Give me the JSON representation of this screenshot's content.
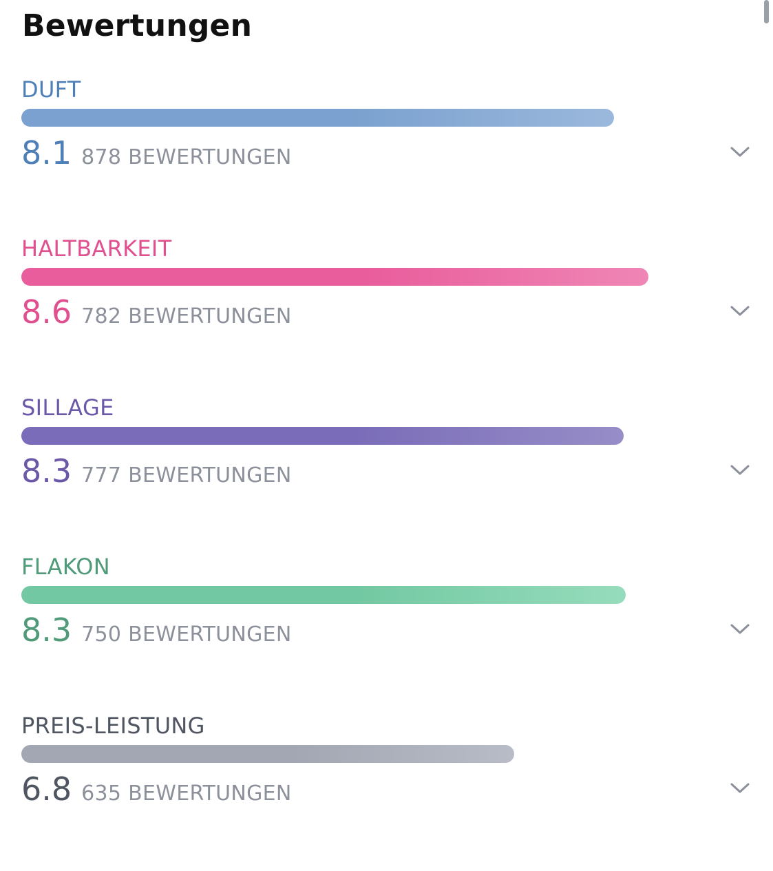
{
  "title": "Bewertungen",
  "ratings": [
    {
      "label": "DUFT",
      "score": "8.1",
      "count_label": "878 BEWERTUNGEN",
      "fill_fraction": 0.895,
      "color": "#4f7fb7",
      "bar_start": "#7aa1cf",
      "bar_end": "#9bb8dc"
    },
    {
      "label": "HALTBARKEIT",
      "score": "8.6",
      "count_label": "782 BEWERTUNGEN",
      "fill_fraction": 0.947,
      "color": "#e0508f",
      "bar_start": "#e95d9c",
      "bar_end": "#ef86b5"
    },
    {
      "label": "SILLAGE",
      "score": "8.3",
      "count_label": "777 BEWERTUNGEN",
      "fill_fraction": 0.91,
      "color": "#6c58a8",
      "bar_start": "#7a6cb8",
      "bar_end": "#978dc8"
    },
    {
      "label": "FLAKON",
      "score": "8.3",
      "count_label": "750 BEWERTUNGEN",
      "fill_fraction": 0.913,
      "color": "#4f9a78",
      "bar_start": "#72c8a2",
      "bar_end": "#96dcbc"
    },
    {
      "label": "PREIS-LEISTUNG",
      "score": "6.8",
      "count_label": "635 BEWERTUNGEN",
      "fill_fraction": 0.744,
      "color": "#4f5561",
      "bar_start": "#a2a7b3",
      "bar_end": "#b8bcc6"
    }
  ],
  "icons": {
    "expand": "chevron-down-icon"
  }
}
